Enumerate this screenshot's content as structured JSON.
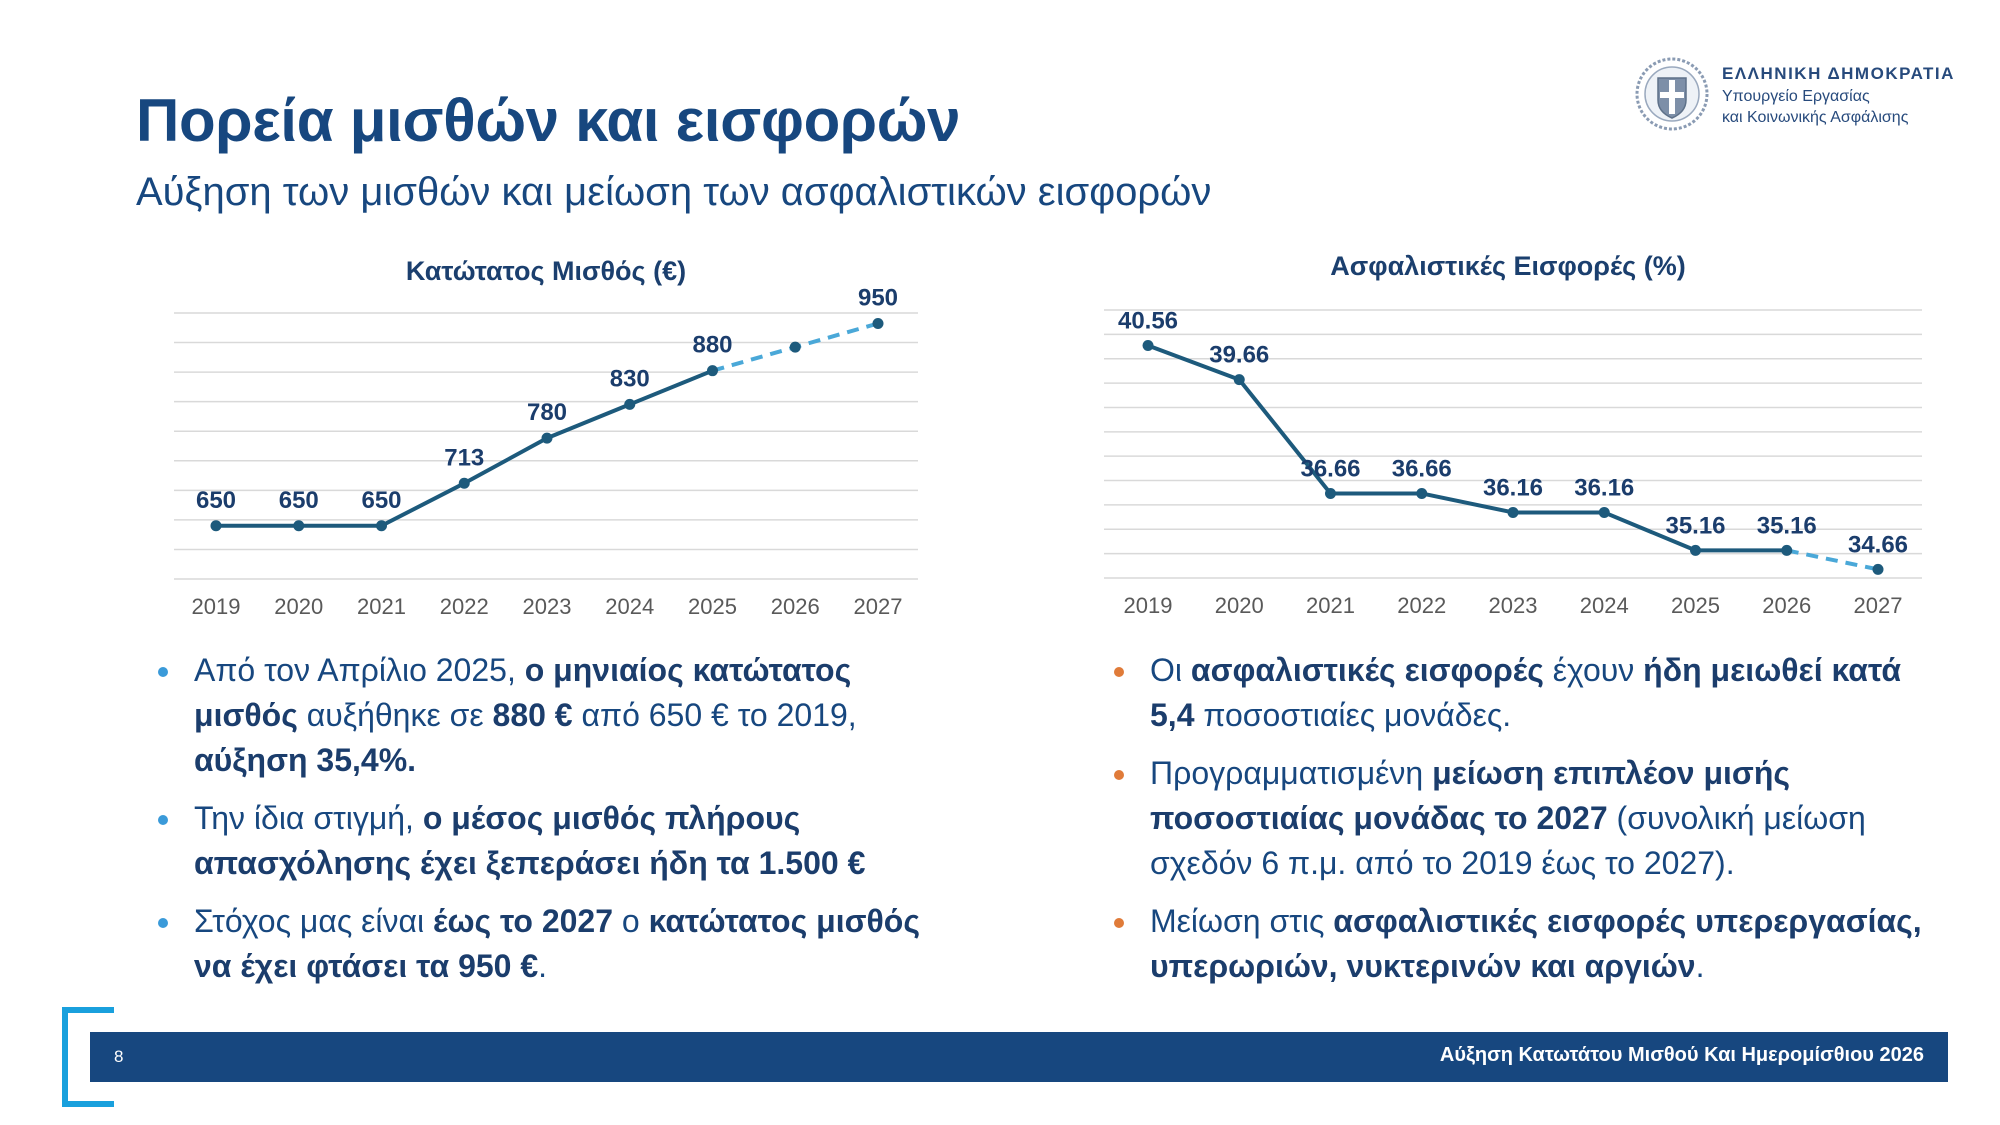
{
  "header": {
    "title": "Πορεία μισθών και εισφορών",
    "subtitle": "Αύξηση των μισθών και μείωση των ασφαλιστικών εισφορών"
  },
  "logo": {
    "line1": "ΕΛΛΗΝΙΚΗ ΔΗΜΟΚΡΑΤΙΑ",
    "line2": "Υπουργείο Εργασίας",
    "line3": "και Κοινωνικής Ασφάλισης",
    "icon": "greek-coat-of-arms-seal"
  },
  "colors": {
    "title": "#17477f",
    "line": "#1d5a7c",
    "forecast": "#4aa8d8",
    "bullet_left": "#3a9ad9",
    "bullet_right": "#e07b39",
    "footer": "#17477f"
  },
  "chart_data": [
    {
      "type": "line",
      "title": "Κατώτατος Μισθός (€)",
      "x": [
        "2019",
        "2020",
        "2021",
        "2022",
        "2023",
        "2024",
        "2025",
        "2026",
        "2027"
      ],
      "series": [
        {
          "values": [
            650,
            650,
            650,
            713,
            780,
            830,
            880,
            null,
            950
          ],
          "labels": [
            "650",
            "650",
            "650",
            "713",
            "780",
            "830",
            "880",
            "",
            "950"
          ],
          "style": "solid until 2025, dashed forecast 2025–2027"
        }
      ],
      "forecast_2026_approx": 915,
      "ylim": [
        620,
        970
      ],
      "grid": true,
      "legend": "none"
    },
    {
      "type": "line",
      "title": "Ασφαλιστικές Εισφορές (%)",
      "x": [
        "2019",
        "2020",
        "2021",
        "2022",
        "2023",
        "2024",
        "2025",
        "2026",
        "2027"
      ],
      "series": [
        {
          "values": [
            40.56,
            39.66,
            36.66,
            36.66,
            36.16,
            36.16,
            35.16,
            35.16,
            34.66
          ],
          "labels": [
            "40.56",
            "39.66",
            "36.66",
            "36.66",
            "36.16",
            "36.16",
            "35.16",
            "35.16",
            "34.66"
          ],
          "style": "solid until 2026, dashed forecast 2026–2027"
        }
      ],
      "ylim": [
        33.8,
        41.6
      ],
      "grid": true,
      "legend": "none"
    }
  ],
  "bullets_left": [
    [
      {
        "t": "Από τον Απρίλιο 2025, "
      },
      {
        "t": "ο μηνιαίος κατώτατος μισθός",
        "b": true
      },
      {
        "t": " αυξήθηκε σε "
      },
      {
        "t": "880 €",
        "b": true
      },
      {
        "t": " από 650 € το 2019, "
      },
      {
        "t": "αύξηση 35,4%.",
        "b": true
      }
    ],
    [
      {
        "t": "Την ίδια στιγμή, "
      },
      {
        "t": "ο μέσος μισθός πλήρους απασχόλησης έχει ξεπεράσει ήδη τα 1.500 €",
        "b": true
      }
    ],
    [
      {
        "t": "Στόχος μας είναι "
      },
      {
        "t": "έως το 2027",
        "b": true
      },
      {
        "t": " ο "
      },
      {
        "t": "κατώτατος μισθός να έχει φτάσει τα 950 €",
        "b": true
      },
      {
        "t": "."
      }
    ]
  ],
  "bullets_right": [
    [
      {
        "t": "Οι "
      },
      {
        "t": "ασφαλιστικές εισφορές",
        "b": true
      },
      {
        "t": " έχουν "
      },
      {
        "t": "ήδη μειωθεί κατά 5,4",
        "b": true
      },
      {
        "t": " ποσοστιαίες μονάδες."
      }
    ],
    [
      {
        "t": "Προγραμματισμένη "
      },
      {
        "t": "μείωση επιπλέον μισής ποσοστιαίας μονάδας το 2027",
        "b": true
      },
      {
        "t": " (συνολική μείωση σχεδόν 6 π.μ. από το 2019 έως το 2027)."
      }
    ],
    [
      {
        "t": "Μείωση στις "
      },
      {
        "t": "ασφαλιστικές εισφορές υπερεργασίας, υπερωριών, νυκτερινών και αργιών",
        "b": true
      },
      {
        "t": "."
      }
    ]
  ],
  "footer": {
    "page_number": "8",
    "text": "Αύξηση Κατωτάτου Μισθού Και Ημερομίσθιου 2026"
  }
}
